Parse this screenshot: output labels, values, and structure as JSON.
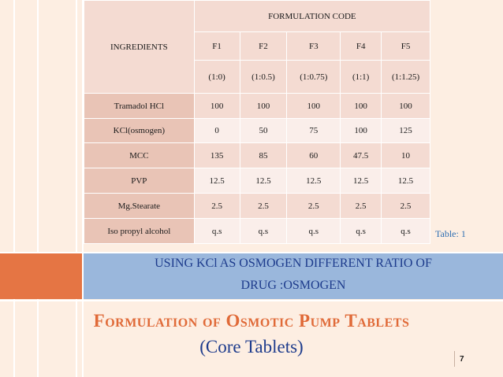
{
  "table": {
    "ingredients_header": "INGREDIENTS",
    "code_header": "FORMULATION CODE",
    "formulation_codes": [
      "F1",
      "F2",
      "F3",
      "F4",
      "F5"
    ],
    "ratios": [
      "(1:0)",
      "(1:0.5)",
      "(1:0.75)",
      "(1:1)",
      "(1:1.25)"
    ],
    "rows": [
      {
        "ingredient": "Tramadol HCl",
        "values": [
          "100",
          "100",
          "100",
          "100",
          "100"
        ]
      },
      {
        "ingredient": "KCl(osmogen)",
        "values": [
          "0",
          "50",
          "75",
          "100",
          "125"
        ]
      },
      {
        "ingredient": "MCC",
        "values": [
          "135",
          "85",
          "60",
          "47.5",
          "10"
        ]
      },
      {
        "ingredient": "PVP",
        "values": [
          "12.5",
          "12.5",
          "12.5",
          "12.5",
          "12.5"
        ]
      },
      {
        "ingredient": "Mg.Stearate",
        "values": [
          "2.5",
          "2.5",
          "2.5",
          "2.5",
          "2.5"
        ]
      },
      {
        "ingredient": "Iso propyl alcohol",
        "values": [
          "q.s",
          "q.s",
          "q.s",
          "q.s",
          "q.s"
        ]
      }
    ],
    "caption": "Table: 1"
  },
  "banner": {
    "line1": "USING KCl AS OSMOGEN DIFFERENT RATIO OF",
    "line2": "DRUG :OSMOGEN"
  },
  "slide": {
    "title": "Formulation of Osmotic Pump Tablets",
    "subtitle": "(Core Tablets)",
    "page_number": "7"
  },
  "colors": {
    "background": "#fdeee2",
    "accent_orange": "#e57544",
    "banner_blue": "#9ab7dc",
    "title_orange": "#e06a38",
    "text_navy": "#1d3b8c",
    "caption_blue": "#2f6fb3"
  }
}
